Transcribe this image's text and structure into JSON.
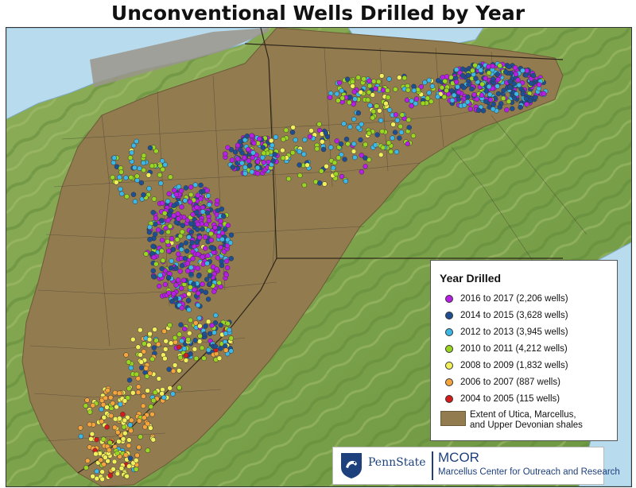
{
  "title": "Unconventional Wells Drilled by Year",
  "legend": {
    "title": "Year Drilled",
    "items": [
      {
        "label": "2016 to 2017 (2,206 wells)",
        "color": "#b81ee6"
      },
      {
        "label": "2014 to 2015 (3,628 wells)",
        "color": "#1f4f93"
      },
      {
        "label": "2012 to 2013 (3,945 wells)",
        "color": "#3cb7e6"
      },
      {
        "label": "2010 to 2011 (4,212 wells)",
        "color": "#99d521"
      },
      {
        "label": "2008 to 2009 (1,832 wells)",
        "color": "#f2f05a"
      },
      {
        "label": "2006 to 2007 (887 wells)",
        "color": "#f5a53c"
      },
      {
        "label": "2004 to 2005 (115 wells)",
        "color": "#d61b1b"
      }
    ],
    "extent_label": "Extent of Utica, Marcellus, and Upper Devonian shales",
    "extent_color": "#937b50"
  },
  "logo": {
    "org_name": "PennState",
    "acronym": "MCOR",
    "full_name": "Marcellus Center for Outreach and Research"
  }
}
